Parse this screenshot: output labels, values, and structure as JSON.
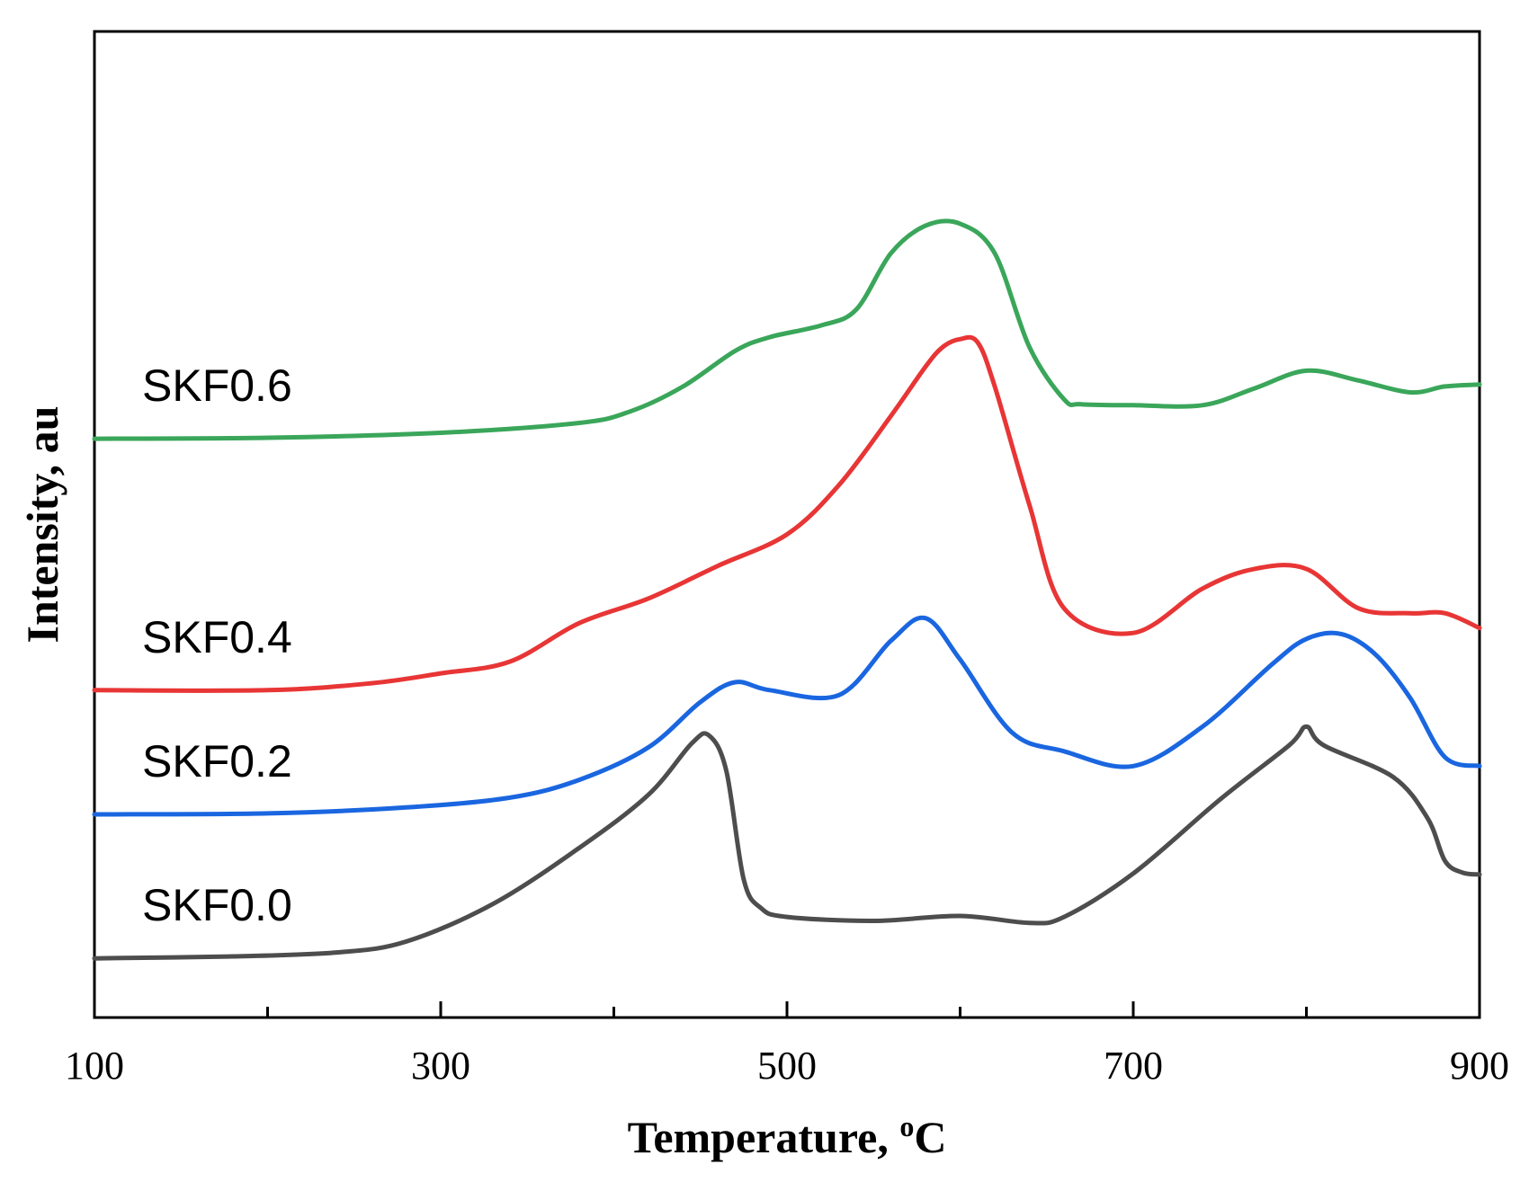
{
  "chart_data": {
    "type": "line",
    "title": "",
    "xlabel": "Temperature, ",
    "xlabel_superscript": "o",
    "xlabel_unit": "C",
    "ylabel": "Intensity, au",
    "xlim": [
      100,
      900
    ],
    "ylim": [
      0,
      100
    ],
    "x_major_ticks": [
      100,
      300,
      500,
      700,
      900
    ],
    "x_minor_ticks": [
      200,
      400,
      600,
      800
    ],
    "x_tick_labels": [
      "100",
      "300",
      "500",
      "700",
      "900"
    ],
    "y_ticks_shown": false,
    "grid": false,
    "series": [
      {
        "name": "SKF0.0",
        "color": "#4d4d4d",
        "x": [
          100,
          180,
          240,
          280,
          330,
          380,
          420,
          445,
          455,
          465,
          475,
          485,
          500,
          550,
          600,
          640,
          660,
          700,
          750,
          790,
          800,
          810,
          850,
          870,
          880,
          890,
          900
        ],
        "y": [
          6.0,
          6.2,
          6.6,
          7.7,
          11.5,
          17.2,
          22.6,
          27.8,
          28.6,
          25.0,
          14.0,
          11.1,
          10.2,
          9.8,
          10.3,
          9.6,
          10.2,
          14.6,
          22.1,
          27.6,
          29.5,
          27.6,
          24.4,
          20.2,
          15.9,
          14.7,
          14.5
        ]
      },
      {
        "name": "SKF0.2",
        "color": "#1a66e0",
        "x": [
          100,
          200,
          280,
          340,
          380,
          420,
          450,
          470,
          490,
          530,
          560,
          580,
          600,
          630,
          660,
          700,
          740,
          780,
          800,
          820,
          840,
          860,
          880,
          900
        ],
        "y": [
          20.6,
          20.7,
          21.3,
          22.3,
          24.1,
          27.4,
          32.0,
          34.0,
          33.2,
          32.7,
          38.2,
          40.5,
          36.3,
          28.9,
          27.0,
          25.5,
          29.5,
          35.8,
          38.4,
          38.9,
          36.8,
          32.4,
          26.4,
          25.5
        ]
      },
      {
        "name": "SKF0.4",
        "color": "#e83535",
        "x": [
          100,
          200,
          260,
          300,
          340,
          380,
          420,
          460,
          500,
          530,
          560,
          580,
          590,
          600,
          610,
          620,
          640,
          660,
          700,
          740,
          770,
          800,
          830,
          860,
          880,
          900
        ],
        "y": [
          33.2,
          33.2,
          33.9,
          34.9,
          36.1,
          40.0,
          42.5,
          45.8,
          49.0,
          54.0,
          61.0,
          66.0,
          68.0,
          68.8,
          68.5,
          64.0,
          52.0,
          41.5,
          39.0,
          43.5,
          45.5,
          45.5,
          41.5,
          41.0,
          41.0,
          39.5
        ]
      },
      {
        "name": "SKF0.6",
        "color": "#3aa65a",
        "x": [
          100,
          200,
          300,
          380,
          410,
          440,
          470,
          490,
          520,
          540,
          560,
          580,
          600,
          620,
          640,
          660,
          670,
          700,
          740,
          770,
          800,
          830,
          860,
          880,
          900
        ],
        "y": [
          58.7,
          58.8,
          59.3,
          60.3,
          61.5,
          64.0,
          67.6,
          69.0,
          70.2,
          71.8,
          77.5,
          80.3,
          80.5,
          77.5,
          68.0,
          62.7,
          62.2,
          62.1,
          62.1,
          63.8,
          65.6,
          64.6,
          63.4,
          64.0,
          64.2
        ]
      }
    ],
    "labels": [
      "SKF0.6",
      "SKF0.4",
      "SKF0.2",
      "SKF0.0"
    ]
  }
}
